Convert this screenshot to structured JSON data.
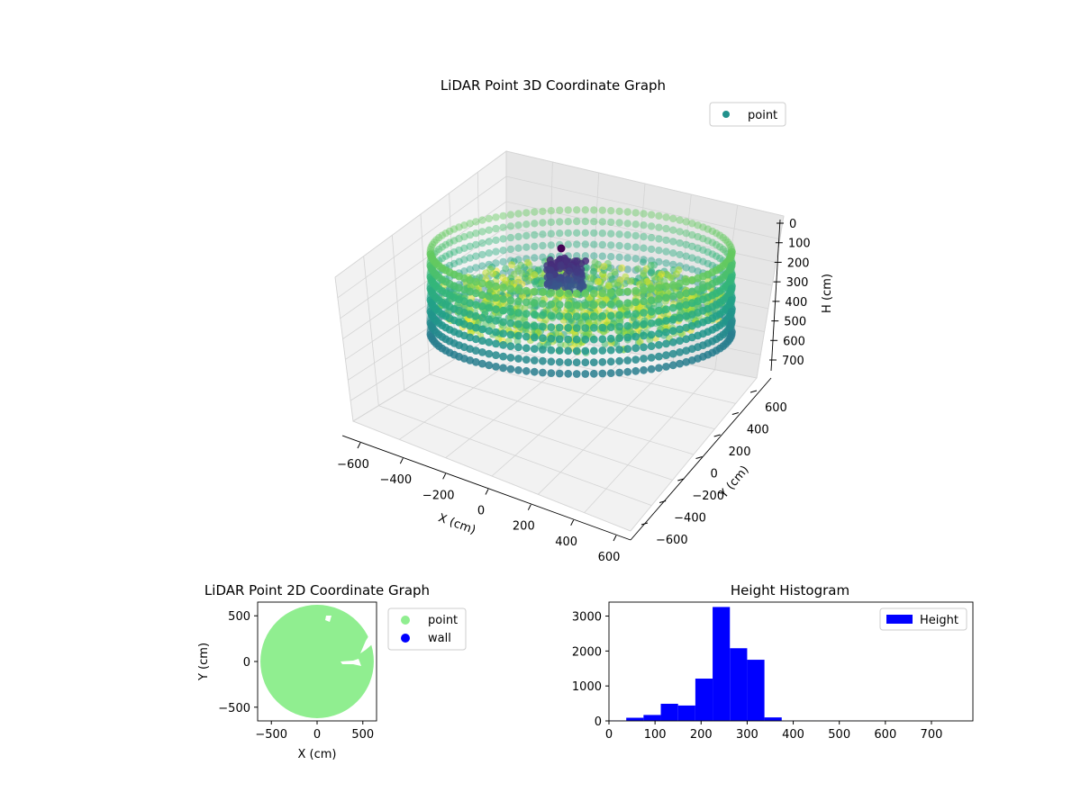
{
  "chart_data": [
    {
      "type": "scatter",
      "title": "LiDAR Point 3D Coordinate Graph",
      "xlabel": "X (cm)",
      "ylabel": "Y (cm)",
      "zlabel": "H (cm)",
      "xticks": [
        "−600",
        "−400",
        "−200",
        "0",
        "200",
        "400",
        "600"
      ],
      "yticks": [
        "600",
        "400",
        "200",
        "0",
        "−200",
        "−400",
        "−600"
      ],
      "zticks": [
        "0",
        "100",
        "200",
        "300",
        "400",
        "500",
        "600",
        "700"
      ],
      "xlim": [
        -650,
        650
      ],
      "ylim": [
        -650,
        650
      ],
      "zlim": [
        750,
        0
      ],
      "legend": {
        "placement": "upper-right",
        "entries": [
          {
            "label": "point",
            "color": "#21918c"
          }
        ]
      },
      "colormap": "viridis",
      "series": [
        {
          "name": "point",
          "shape": "ring",
          "radius": 620,
          "height_range": [
            0,
            750
          ]
        }
      ]
    },
    {
      "type": "scatter",
      "title": "LiDAR Point 2D Coordinate Graph",
      "xlabel": "X (cm)",
      "ylabel": "Y (cm)",
      "xticks": [
        "−500",
        "0",
        "500"
      ],
      "yticks": [
        "500",
        "0",
        "−500"
      ],
      "xlim": [
        -650,
        650
      ],
      "ylim": [
        -650,
        650
      ],
      "legend": {
        "placement": "outside-right",
        "entries": [
          {
            "label": "point",
            "color": "#90ee90"
          },
          {
            "label": "wall",
            "color": "#0000ff"
          }
        ]
      },
      "series": [
        {
          "name": "point",
          "color": "#90ee90",
          "shape": "disk",
          "center": [
            0,
            0
          ],
          "radius": 620
        },
        {
          "name": "wall",
          "color": "#0000ff",
          "points": []
        }
      ]
    },
    {
      "type": "bar",
      "title": "Height Histogram",
      "xlabel": "",
      "ylabel": "",
      "xticks": [
        "0",
        "100",
        "200",
        "300",
        "400",
        "500",
        "600",
        "700"
      ],
      "yticks": [
        "0",
        "1000",
        "2000",
        "3000"
      ],
      "xlim": [
        0,
        790
      ],
      "ylim": [
        0,
        3400
      ],
      "legend": {
        "placement": "upper-right",
        "entries": [
          {
            "label": "Height",
            "color": "#0000ff"
          }
        ]
      },
      "series": [
        {
          "name": "Height",
          "color": "#0000ff",
          "bin_edges": [
            0,
            37.5,
            75,
            112.5,
            150,
            187.5,
            225,
            262.5,
            300,
            337.5,
            375,
            412.5,
            450,
            487.5,
            525,
            562.5,
            600,
            637.5,
            675,
            712.5,
            750
          ],
          "values": [
            10,
            90,
            170,
            490,
            440,
            1210,
            3260,
            2080,
            1750,
            100,
            5,
            5,
            3,
            2,
            2,
            2,
            1,
            1,
            1,
            1
          ]
        }
      ]
    }
  ]
}
